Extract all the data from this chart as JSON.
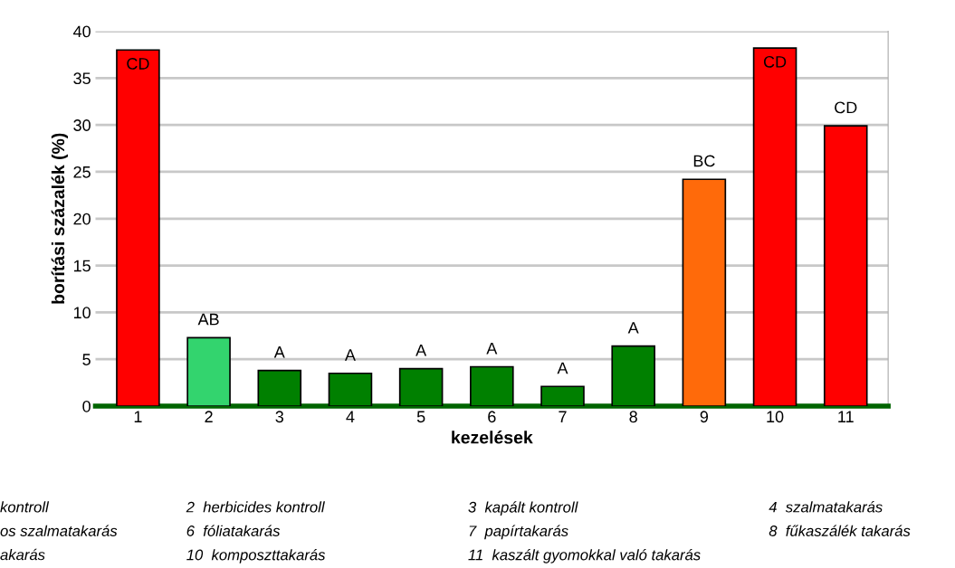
{
  "chart_data": {
    "type": "bar",
    "xlabel": "kezelések",
    "ylabel": "borítási százalék (%)",
    "categories": [
      "1",
      "2",
      "3",
      "4",
      "5",
      "6",
      "7",
      "8",
      "9",
      "10",
      "11"
    ],
    "values": [
      38,
      7.3,
      3.8,
      3.5,
      4.0,
      4.2,
      2.1,
      6.4,
      24.2,
      38.2,
      29.9
    ],
    "colors": [
      "#ff0000",
      "#33d46e",
      "#008000",
      "#008000",
      "#008000",
      "#008000",
      "#008000",
      "#008000",
      "#ff6a0a",
      "#ff0000",
      "#ff0000"
    ],
    "value_labels": [
      "CD",
      "AB",
      "A",
      "A",
      "A",
      "A",
      "A",
      "A",
      "BC",
      "CD",
      "CD"
    ],
    "ylim": [
      0,
      40
    ],
    "yticks": [
      0,
      5,
      10,
      15,
      20,
      25,
      30,
      35,
      40
    ],
    "grid": "y",
    "annotations": [
      "kontroll",
      "2  herbicides kontroll",
      "3  kapált kontroll",
      "4  szalmatakarás",
      "os szalmatakarás",
      "6  fóliatakarás",
      "7  papírtakarás",
      "8  fűkaszálék takarás",
      "akarás",
      "10  komposzttakarás",
      "11  kaszált gyomokkal való takarás"
    ]
  }
}
